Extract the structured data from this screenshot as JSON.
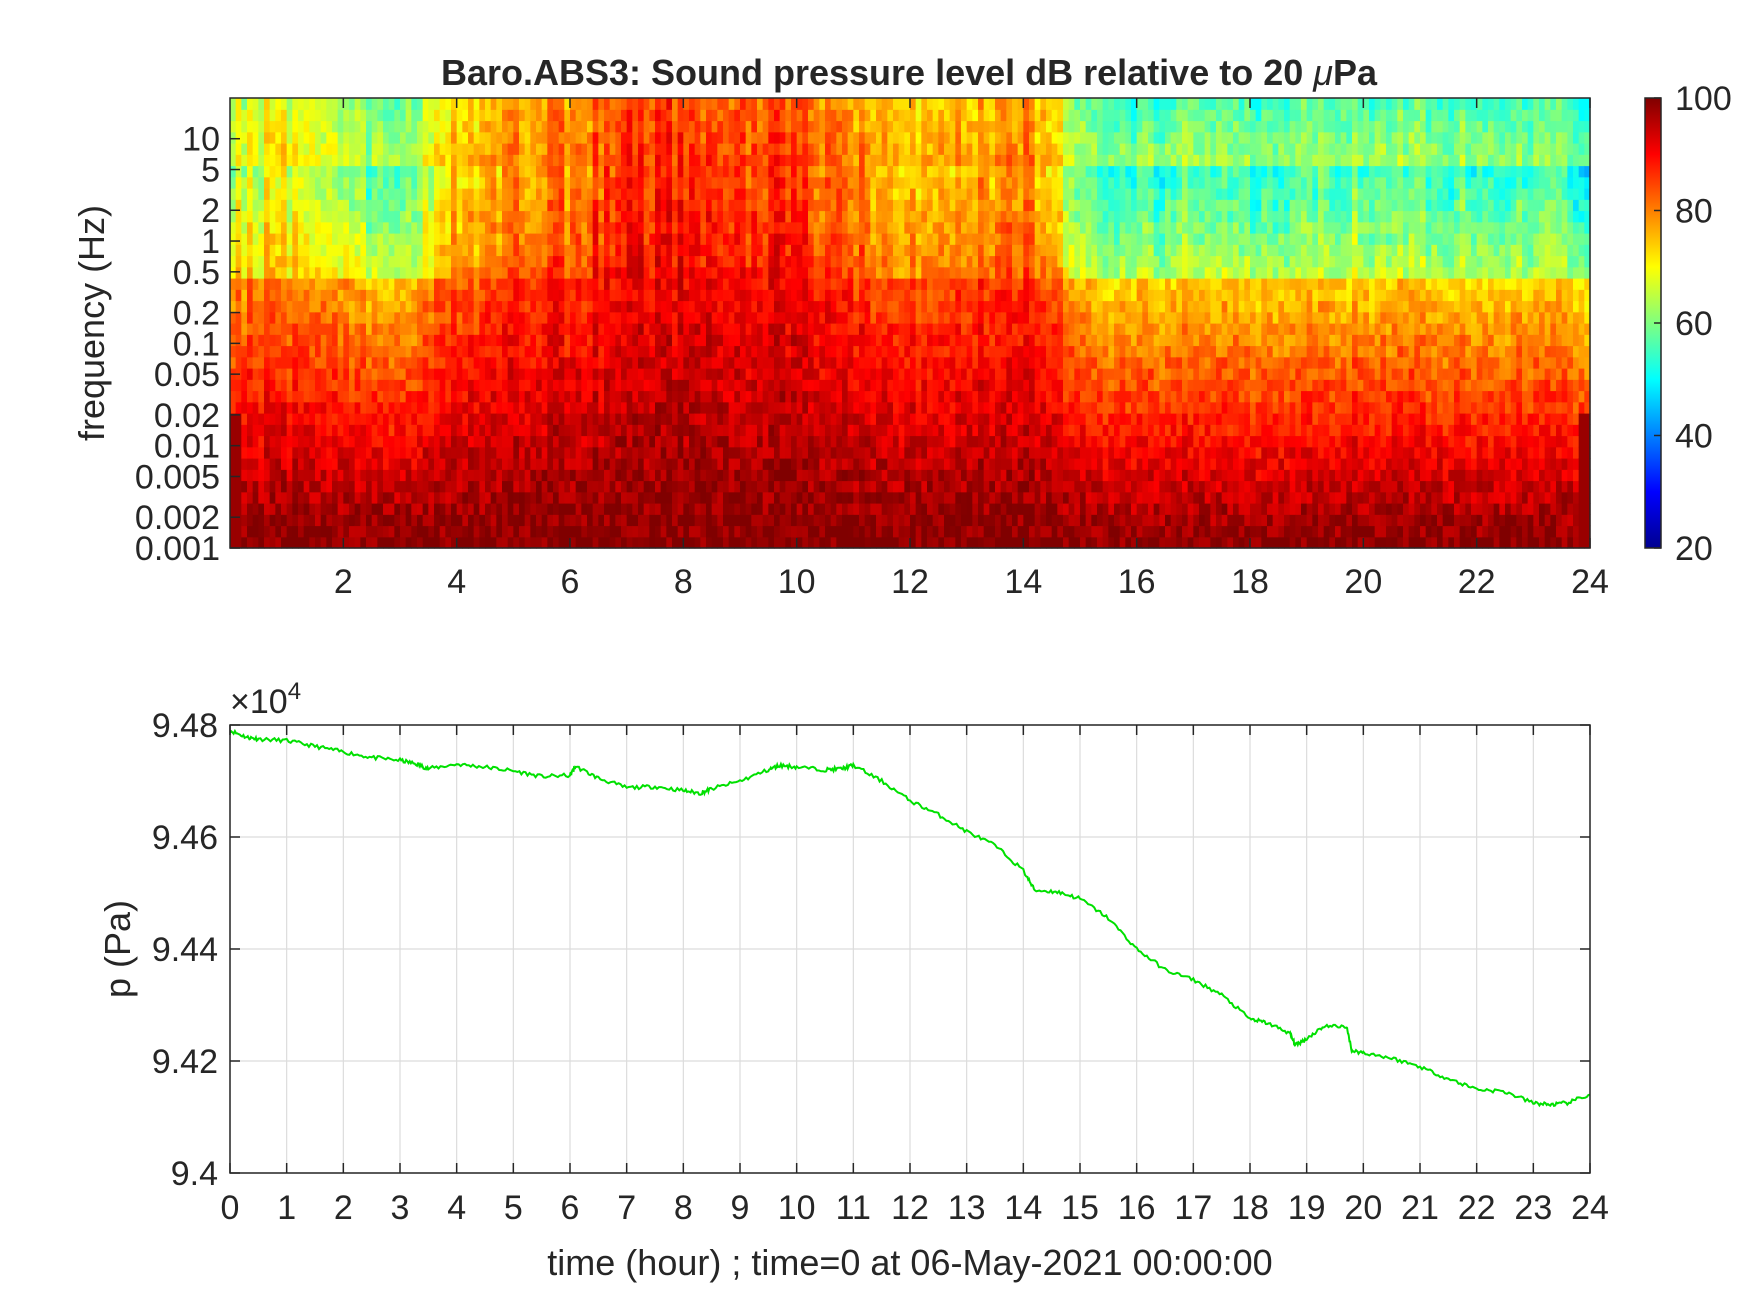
{
  "chart_data": [
    {
      "type": "heatmap",
      "title": "Baro.ABS3: Sound pressure level dB relative to 20 μPa",
      "title_main": "Baro.ABS3: Sound pressure level dB relative to 20 ",
      "title_mu": "μ",
      "title_unit": "Pa",
      "ylabel": "frequency (Hz)",
      "xlabel": "",
      "x_scale": "linear",
      "y_scale": "log",
      "xlim": [
        0,
        24
      ],
      "ylim": [
        0.001,
        25
      ],
      "x_ticks": [
        2,
        4,
        6,
        8,
        10,
        12,
        14,
        16,
        18,
        20,
        22,
        24
      ],
      "y_ticks": [
        0.001,
        0.002,
        0.005,
        0.01,
        0.02,
        0.05,
        0.1,
        0.2,
        0.5,
        1,
        2,
        5,
        10
      ],
      "y_tick_labels": [
        "0.001",
        "0.002",
        "0.005",
        "0.01",
        "0.02",
        "0.05",
        "0.1",
        "0.2",
        "0.5",
        "1",
        "2",
        "5",
        "10"
      ],
      "colormap": "jet",
      "color_range": [
        20,
        100
      ],
      "colorbar_ticks": [
        20,
        40,
        60,
        80,
        100
      ],
      "activity_by_hour": [
        [
          0,
          0.55
        ],
        [
          1,
          0.6
        ],
        [
          2,
          0.45
        ],
        [
          3,
          0.35
        ],
        [
          3.5,
          0.55
        ],
        [
          4,
          0.7
        ],
        [
          5,
          0.8
        ],
        [
          6,
          0.85
        ],
        [
          7,
          0.95
        ],
        [
          8,
          1.0
        ],
        [
          9,
          0.95
        ],
        [
          10,
          0.95
        ],
        [
          11,
          0.85
        ],
        [
          12,
          0.7
        ],
        [
          13,
          0.75
        ],
        [
          14,
          0.85
        ],
        [
          15,
          0.45
        ],
        [
          16,
          0.3
        ],
        [
          17,
          0.38
        ],
        [
          18,
          0.32
        ],
        [
          19,
          0.38
        ],
        [
          20,
          0.42
        ],
        [
          21,
          0.35
        ],
        [
          22,
          0.35
        ],
        [
          23,
          0.35
        ],
        [
          24,
          0.3
        ]
      ]
    },
    {
      "type": "line",
      "ylabel": "p (Pa)",
      "xlabel": "time (hour) ; time=0 at 06-May-2021 00:00:00",
      "y_exponent_base": "×10",
      "y_exponent_power": "4",
      "xlim": [
        0,
        24
      ],
      "ylim": [
        94000,
        94800
      ],
      "x_ticks": [
        0,
        1,
        2,
        3,
        4,
        5,
        6,
        7,
        8,
        9,
        10,
        11,
        12,
        13,
        14,
        15,
        16,
        17,
        18,
        19,
        20,
        21,
        22,
        23,
        24
      ],
      "y_ticks": [
        94000,
        94200,
        94400,
        94600,
        94800
      ],
      "y_tick_labels": [
        "9.4",
        "9.42",
        "9.44",
        "9.46",
        "9.48"
      ],
      "grid": true,
      "series": [
        {
          "color": "#00e000",
          "x": [
            0,
            0.3,
            0.5,
            1,
            1.5,
            2,
            2.5,
            3,
            3.3,
            3.5,
            4,
            4.5,
            5,
            5.5,
            6,
            6.1,
            6.5,
            7,
            7.5,
            8,
            8.3,
            8.5,
            9,
            9.5,
            9.7,
            10,
            10.5,
            10.8,
            11,
            11.5,
            12,
            12.5,
            13,
            13.5,
            14,
            14.2,
            14.6,
            15,
            15.5,
            16,
            16.5,
            17,
            17.5,
            18,
            18.3,
            18.7,
            18.8,
            19,
            19.3,
            19.7,
            19.8,
            20,
            20.5,
            21,
            21.5,
            22,
            22.5,
            23,
            23.3,
            23.6,
            24
          ],
          "y": [
            94790,
            94778,
            94775,
            94772,
            94762,
            94752,
            94742,
            94737,
            94730,
            94722,
            94730,
            94725,
            94718,
            94708,
            94710,
            94726,
            94705,
            94688,
            94690,
            94683,
            94678,
            94686,
            94700,
            94720,
            94728,
            94725,
            94720,
            94722,
            94728,
            94700,
            94665,
            94640,
            94610,
            94585,
            94540,
            94505,
            94502,
            94490,
            94455,
            94400,
            94363,
            94345,
            94318,
            94275,
            94268,
            94250,
            94228,
            94240,
            94262,
            94262,
            94218,
            94215,
            94205,
            94190,
            94168,
            94150,
            94145,
            94125,
            94122,
            94125,
            94140
          ]
        }
      ]
    }
  ]
}
